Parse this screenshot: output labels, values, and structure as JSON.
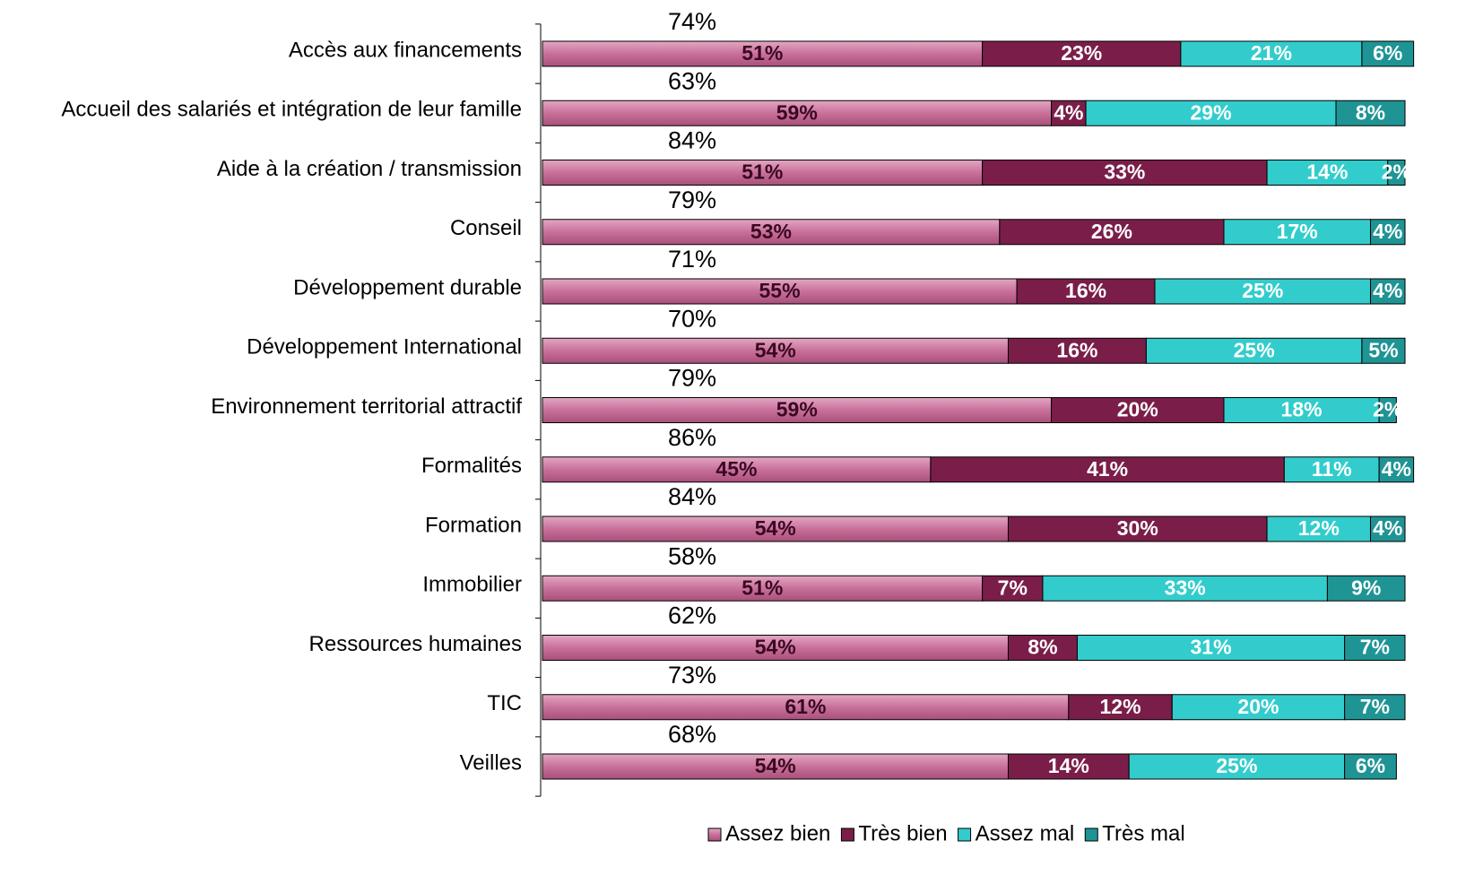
{
  "chart_data": {
    "type": "stacked_barh",
    "categories": [
      "Accès aux financements",
      "Accueil des salariés et intégration de leur famille",
      "Aide à la création / transmission",
      "Conseil",
      "Développement durable",
      "Développement International",
      "Environnement territorial attractif",
      "Formalités",
      "Formation",
      "Immobilier",
      "Ressources humaines",
      "TIC",
      "Veilles"
    ],
    "series": [
      {
        "name": "Assez bien",
        "color": "#c8709a",
        "label_color": "#3a0820",
        "values": [
          51,
          59,
          51,
          53,
          55,
          54,
          59,
          45,
          54,
          51,
          54,
          61,
          54
        ],
        "value_labels": [
          "51%",
          "59%",
          "51%",
          "53%",
          "55%",
          "54%",
          "59%",
          "45%",
          "54%",
          "51%",
          "54%",
          "61%",
          "54%"
        ]
      },
      {
        "name": "Très bien",
        "color": "#7a1e49",
        "label_color": "#ffffff",
        "values": [
          23,
          4,
          33,
          26,
          16,
          16,
          20,
          41,
          30,
          7,
          8,
          12,
          14
        ],
        "value_labels": [
          "23%",
          "4%",
          "33%",
          "26%",
          "16%",
          "16%",
          "20%",
          "41%",
          "30%",
          "7%",
          "8%",
          "12%",
          "14%"
        ]
      },
      {
        "name": "Assez mal",
        "color": "#33cccc",
        "label_color": "#ffffff",
        "values": [
          21,
          29,
          14,
          17,
          25,
          25,
          18,
          11,
          12,
          33,
          31,
          20,
          25
        ],
        "value_labels": [
          "21%",
          "29%",
          "14%",
          "17%",
          "25%",
          "25%",
          "18%",
          "11%",
          "12%",
          "33%",
          "31%",
          "20%",
          "25%"
        ]
      },
      {
        "name": "Très mal",
        "color": "#1f9494",
        "label_color": "#ffffff",
        "values": [
          6,
          8,
          2,
          4,
          4,
          5,
          2,
          4,
          4,
          9,
          7,
          7,
          6
        ],
        "value_labels": [
          "6%",
          "8%",
          "2%",
          "4%",
          "4%",
          "5%",
          "2%",
          "4%",
          "4%",
          "9%",
          "7%",
          "7%",
          "6%"
        ]
      }
    ],
    "totals": {
      "values": [
        74,
        63,
        84,
        79,
        71,
        70,
        79,
        86,
        84,
        58,
        62,
        73,
        68
      ],
      "value_labels": [
        "74%",
        "63%",
        "84%",
        "79%",
        "71%",
        "70%",
        "79%",
        "86%",
        "84%",
        "58%",
        "62%",
        "73%",
        "68%"
      ]
    },
    "xlim": [
      0,
      100
    ],
    "legend": "bottom"
  }
}
